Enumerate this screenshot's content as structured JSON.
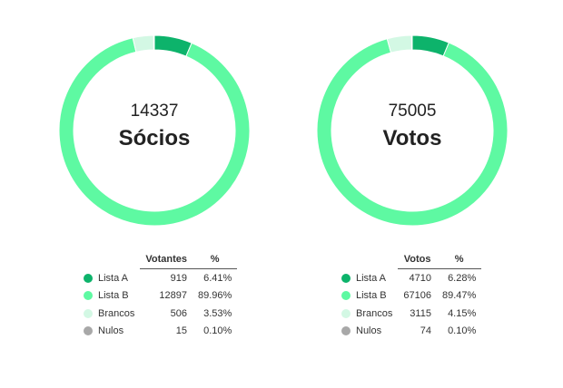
{
  "chart_data": [
    {
      "type": "pie",
      "donut": true,
      "center_value": "14337",
      "center_label": "Sócios",
      "series_colors": [
        "#0db36b",
        "#5ef9a2",
        "#d3f8e4",
        "#a8a8a8"
      ],
      "categories": [
        "Lista A",
        "Lista B",
        "Brancos",
        "Nulos"
      ],
      "values": [
        919,
        12897,
        506,
        15
      ],
      "percentages": [
        "6.41%",
        "89.96%",
        "3.53%",
        "0.10%"
      ],
      "table_headers": [
        "Votantes",
        "%"
      ]
    },
    {
      "type": "pie",
      "donut": true,
      "center_value": "75005",
      "center_label": "Votos",
      "series_colors": [
        "#0db36b",
        "#5ef9a2",
        "#d3f8e4",
        "#a8a8a8"
      ],
      "categories": [
        "Lista A",
        "Lista B",
        "Brancos",
        "Nulos"
      ],
      "values": [
        4710,
        67106,
        3115,
        74
      ],
      "percentages": [
        "6.28%",
        "89.47%",
        "4.15%",
        "0.10%"
      ],
      "table_headers": [
        "Votos",
        "%"
      ]
    }
  ]
}
